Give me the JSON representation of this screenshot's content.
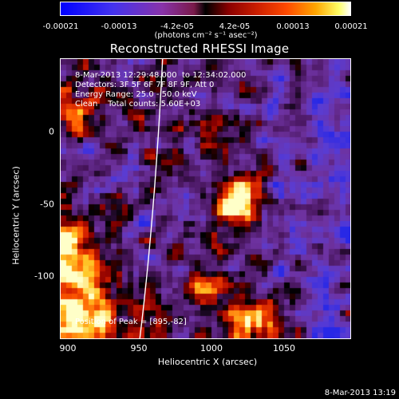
{
  "colorbar": {
    "ticks": [
      "-0.00021",
      "-0.00013",
      "-4.2e-05",
      "4.2e-05",
      "0.00013",
      "0.00021"
    ],
    "units": "(photons cm⁻² s⁻¹ asec⁻²)"
  },
  "plot": {
    "title": "Reconstructed RHESSI Image",
    "info": {
      "time": "8-Mar-2013 12:29:48.000  to 12:34:02.000",
      "detectors": "Detectors: 3F 5F 6F 7F 8F 9F, Att 0",
      "energy": "Energy Range: 25.0 - 50.0 keV",
      "clean": "Clean    Total counts: 5.60E+03"
    },
    "peak": "Position of Peak = [895,-82]",
    "xlabel": "Heliocentric X (arcsec)",
    "ylabel": "Heliocentric Y (arcsec)",
    "xticks": [
      "900",
      "950",
      "1000",
      "1050"
    ],
    "yticks": [
      "0",
      "-50",
      "-100"
    ]
  },
  "timestamp": "8-Mar-2013 13:19"
}
